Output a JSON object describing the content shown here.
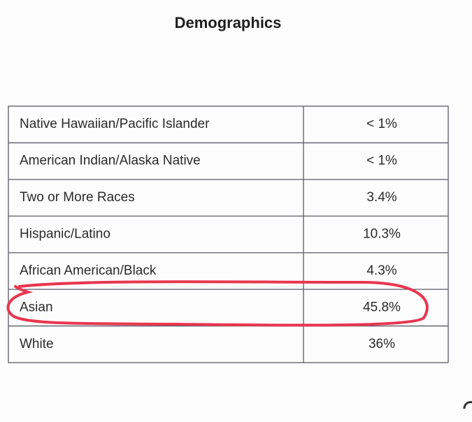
{
  "header": {
    "title": "Demographics"
  },
  "table": {
    "rows": [
      [
        "Native Hawaiian/Pacific Islander",
        "< 1%"
      ],
      [
        "American Indian/Alaska Native",
        "< 1%"
      ],
      [
        "Two or More Races",
        "3.4%"
      ],
      [
        "Hispanic/Latino",
        "10.3%"
      ],
      [
        "African American/Black",
        "4.3%"
      ],
      [
        "Asian",
        "45.8%"
      ],
      [
        "White",
        "36%"
      ]
    ]
  }
}
